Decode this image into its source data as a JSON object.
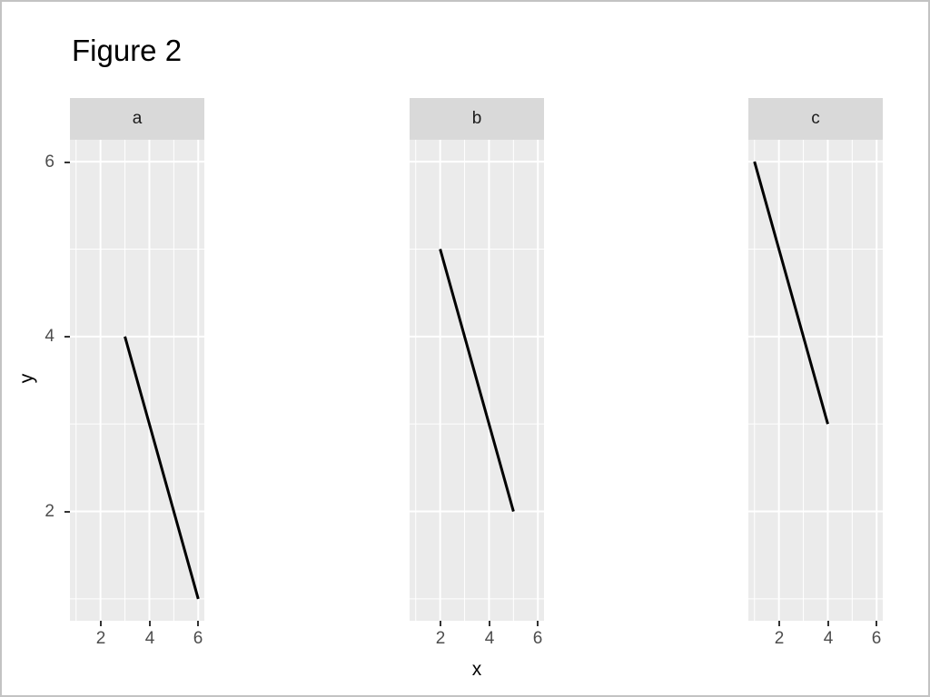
{
  "title": "Figure 2",
  "axes": {
    "x_label": "x",
    "y_label": "y",
    "x_tick_labels": [
      "2",
      "4",
      "6"
    ],
    "y_tick_labels": [
      "6",
      "4",
      "2"
    ]
  },
  "colors": {
    "panel_bg": "#EBEBEB",
    "strip_bg": "#D9D9D9",
    "grid": "#FFFFFF",
    "line": "#000000",
    "tick_label": "#4D4D4D",
    "tick_mark": "#333333",
    "title": "#000000",
    "border": "#C3C3C3"
  },
  "chart_data": {
    "type": "line",
    "title": "Figure 2",
    "xlabel": "x",
    "ylabel": "y",
    "x_domain": [
      0.75,
      6.25
    ],
    "y_domain": [
      0.75,
      6.25
    ],
    "x_ticks": [
      2,
      4,
      6
    ],
    "y_ticks": [
      2,
      4,
      6
    ],
    "major_ticks": [
      2,
      4,
      6
    ],
    "minor_ticks": [
      1,
      3,
      5
    ],
    "grid": true,
    "legend": "none",
    "facets": [
      {
        "label": "a",
        "segment": {
          "x": [
            3,
            6
          ],
          "y": [
            4,
            1
          ]
        }
      },
      {
        "label": "b",
        "segment": {
          "x": [
            2,
            5
          ],
          "y": [
            5,
            2
          ]
        }
      },
      {
        "label": "c",
        "segment": {
          "x": [
            1,
            4
          ],
          "y": [
            6,
            3
          ]
        }
      }
    ]
  }
}
